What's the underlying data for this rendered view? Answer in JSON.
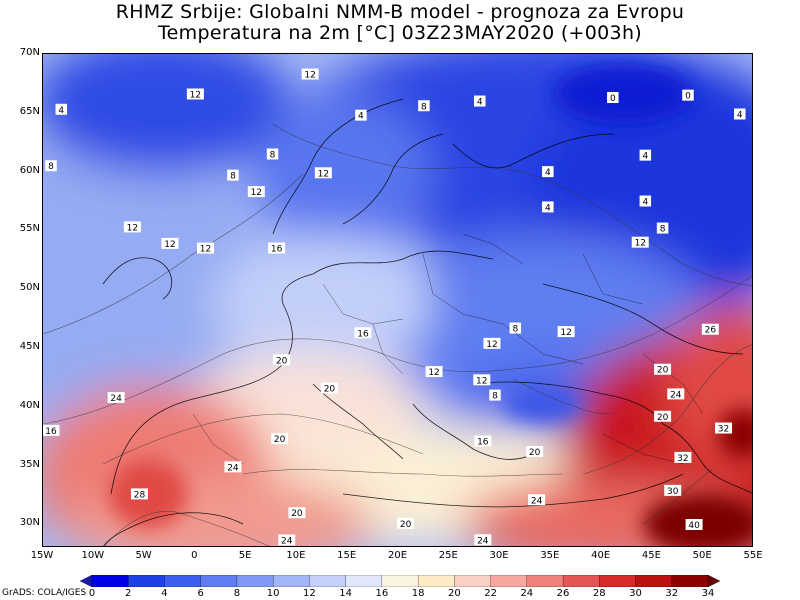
{
  "title": {
    "line1": "RHMZ Srbije: Globalni NMM-B model - prognoza za Evropu",
    "line2": "Temperatura na 2m [°C] 03Z23MAY2020 (+003h)"
  },
  "credit": "GrADS: COLA/IGES",
  "axes": {
    "lat_labels": [
      "70N",
      "65N",
      "60N",
      "55N",
      "50N",
      "45N",
      "40N",
      "35N",
      "30N"
    ],
    "lon_labels": [
      "15W",
      "10W",
      "5W",
      "0",
      "5E",
      "10E",
      "15E",
      "20E",
      "25E",
      "30E",
      "35E",
      "40E",
      "45E",
      "50E",
      "55E"
    ]
  },
  "chart_data": {
    "type": "heatmap",
    "variable": "Temperatura na 2m [°C]",
    "lon_range": [
      -15,
      55
    ],
    "lat_range": [
      28,
      70
    ],
    "colorbar": {
      "ticks": [
        "0",
        "2",
        "4",
        "6",
        "8",
        "10",
        "12",
        "14",
        "16",
        "18",
        "20",
        "22",
        "24",
        "26",
        "28",
        "30",
        "32",
        "34"
      ],
      "colors": [
        "#1a1aa6",
        "#0000e6",
        "#1f3fe8",
        "#3d5ef0",
        "#5e7ef2",
        "#8099f5",
        "#a3b5f7",
        "#c4d0fa",
        "#e2e8fc",
        "#fbf4e3",
        "#fdebc6",
        "#fbd0c4",
        "#f7a79e",
        "#f0807a",
        "#e65454",
        "#d92a2a",
        "#bd1010",
        "#8c0000",
        "#6a0000"
      ]
    },
    "contour_labels": [
      {
        "lon": -13.2,
        "lat": 65.3,
        "text": "4"
      },
      {
        "lon": -0.0,
        "lat": 66.6,
        "text": "12"
      },
      {
        "lon": 11.3,
        "lat": 68.3,
        "text": "12"
      },
      {
        "lon": 16.3,
        "lat": 64.8,
        "text": "4"
      },
      {
        "lon": 22.5,
        "lat": 65.6,
        "text": "8"
      },
      {
        "lon": 28.0,
        "lat": 66.0,
        "text": "4"
      },
      {
        "lon": 41.1,
        "lat": 66.3,
        "text": "0"
      },
      {
        "lon": 48.5,
        "lat": 66.5,
        "text": "0"
      },
      {
        "lon": 53.6,
        "lat": 64.9,
        "text": "4"
      },
      {
        "lon": -16.5,
        "lat": 60.5,
        "text": "8"
      },
      {
        "lon": 7.6,
        "lat": 61.5,
        "text": "8"
      },
      {
        "lon": 3.7,
        "lat": 59.7,
        "text": "8"
      },
      {
        "lon": 12.6,
        "lat": 59.9,
        "text": "12"
      },
      {
        "lon": 34.7,
        "lat": 60.0,
        "text": "4"
      },
      {
        "lon": 44.3,
        "lat": 61.4,
        "text": "4"
      },
      {
        "lon": 44.3,
        "lat": 57.5,
        "text": "4"
      },
      {
        "lon": 34.7,
        "lat": 57.0,
        "text": "4"
      },
      {
        "lon": -6.2,
        "lat": 55.3,
        "text": "12"
      },
      {
        "lon": -2.5,
        "lat": 53.9,
        "text": "12"
      },
      {
        "lon": 1.0,
        "lat": 53.5,
        "text": "12"
      },
      {
        "lon": 6.0,
        "lat": 58.3,
        "text": "12"
      },
      {
        "lon": 8.0,
        "lat": 53.5,
        "text": "16"
      },
      {
        "lon": 46.0,
        "lat": 55.2,
        "text": "8"
      },
      {
        "lon": 43.8,
        "lat": 54.0,
        "text": "12"
      },
      {
        "lon": 16.5,
        "lat": 46.3,
        "text": "16"
      },
      {
        "lon": 31.5,
        "lat": 46.7,
        "text": "8"
      },
      {
        "lon": 36.5,
        "lat": 46.4,
        "text": "12"
      },
      {
        "lon": 8.5,
        "lat": 44.0,
        "text": "20"
      },
      {
        "lon": 29.2,
        "lat": 45.4,
        "text": "12"
      },
      {
        "lon": 23.5,
        "lat": 43.0,
        "text": "12"
      },
      {
        "lon": 28.2,
        "lat": 42.3,
        "text": "12"
      },
      {
        "lon": 13.2,
        "lat": 41.6,
        "text": "20"
      },
      {
        "lon": -7.8,
        "lat": 40.8,
        "text": "24"
      },
      {
        "lon": 29.5,
        "lat": 41.0,
        "text": "8"
      },
      {
        "lon": -18.6,
        "lat": 38.0,
        "text": "16"
      },
      {
        "lon": 8.3,
        "lat": 37.3,
        "text": "20"
      },
      {
        "lon": 28.3,
        "lat": 37.1,
        "text": "16"
      },
      {
        "lon": 33.4,
        "lat": 36.2,
        "text": "20"
      },
      {
        "lon": 47.3,
        "lat": 41.1,
        "text": "24"
      },
      {
        "lon": 46.0,
        "lat": 43.2,
        "text": "20"
      },
      {
        "lon": 46.0,
        "lat": 39.2,
        "text": "20"
      },
      {
        "lon": 50.7,
        "lat": 46.6,
        "text": "26"
      },
      {
        "lon": 52.0,
        "lat": 38.2,
        "text": "32"
      },
      {
        "lon": 48.0,
        "lat": 35.7,
        "text": "32"
      },
      {
        "lon": 3.7,
        "lat": 34.9,
        "text": "24"
      },
      {
        "lon": -5.5,
        "lat": 32.6,
        "text": "28"
      },
      {
        "lon": 10.0,
        "lat": 31.0,
        "text": "20"
      },
      {
        "lon": 20.7,
        "lat": 30.1,
        "text": "20"
      },
      {
        "lon": 47.0,
        "lat": 32.9,
        "text": "30"
      },
      {
        "lon": 33.6,
        "lat": 32.1,
        "text": "24"
      },
      {
        "lon": 28.3,
        "lat": 28.7,
        "text": "24"
      },
      {
        "lon": 9.0,
        "lat": 28.3,
        "text": "24"
      },
      {
        "lon": 49.1,
        "lat": 30.0,
        "text": "40"
      }
    ]
  }
}
